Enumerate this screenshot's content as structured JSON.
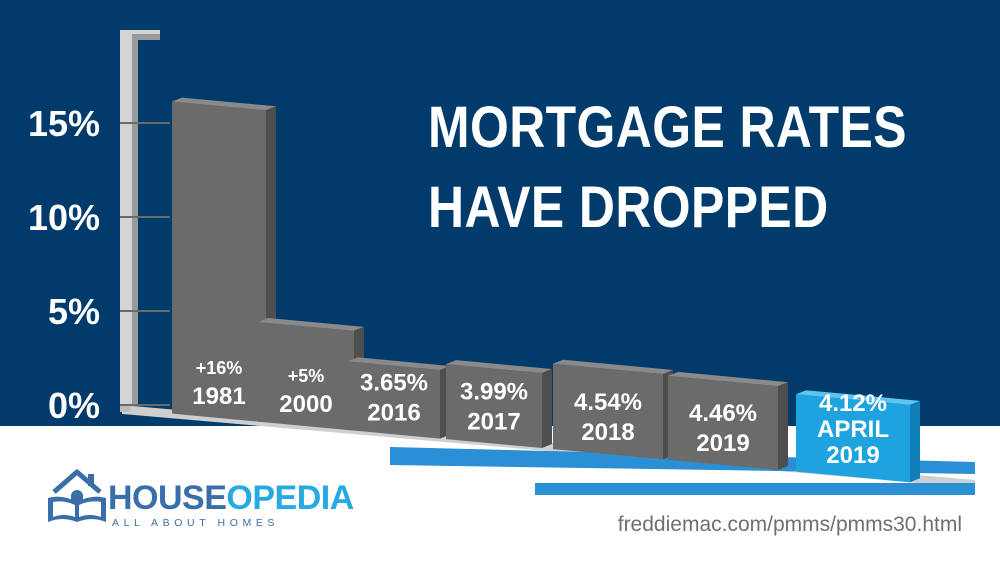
{
  "headline": {
    "line1": "MORTGAGE RATES",
    "line2": "HAVE DROPPED"
  },
  "brand": {
    "word1": "HOUSE",
    "word2": "OPEDIA",
    "tagline": "ALL ABOUT HOMES"
  },
  "source": "freddiemac.com/pmms/pmms30.html",
  "colors": {
    "background": "#003b6b",
    "bar": "#6b6b6b",
    "highlight": "#1ea3de",
    "accent_stripe": "#2a8fd4"
  },
  "chart_data": {
    "type": "bar",
    "ylim": [
      0,
      16
    ],
    "yticks": [
      "0%",
      "5%",
      "10%",
      "15%"
    ],
    "ytick_values": [
      0,
      5,
      10,
      15
    ],
    "categories": [
      "1981",
      "2000",
      "2016",
      "2017",
      "2018",
      "2019",
      "APRIL 2019"
    ],
    "values": [
      16.6,
      5.3,
      3.65,
      3.99,
      4.54,
      4.46,
      4.12
    ],
    "labels": [
      [
        "+16%",
        "1981"
      ],
      [
        "+5%",
        "2000"
      ],
      [
        "3.65%",
        "2016"
      ],
      [
        "3.99%",
        "2017"
      ],
      [
        "4.54%",
        "2018"
      ],
      [
        "4.46%",
        "2019"
      ],
      [
        "4.12%",
        "APRIL",
        "2019"
      ]
    ],
    "highlight_index": 6
  }
}
